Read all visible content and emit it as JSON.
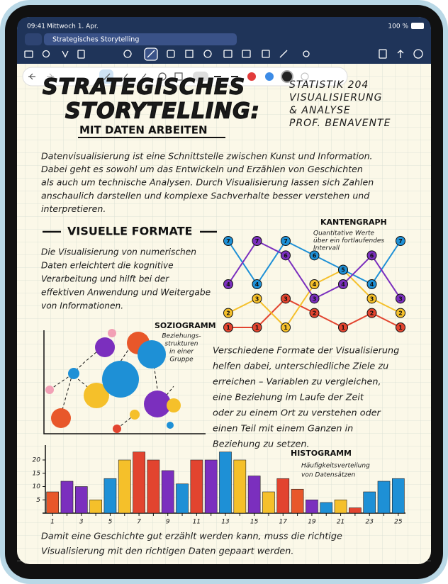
{
  "status_bar": {
    "time": "09:41",
    "date": "Mittwoch 1. Apr.",
    "battery": "100 %"
  },
  "tab": {
    "title": "Strategisches Storytelling"
  },
  "note": {
    "title": [
      "STRATEGISCHES",
      "STORYTELLING:"
    ],
    "subtitle": "MIT DATEN ARBEITEN",
    "course": [
      "STATISTIK 204",
      "VISUALISIERUNG",
      "& ANALYSE",
      "PROF. BENAVENTE"
    ],
    "intro": [
      "Datenvisualisierung ist eine Schnittstelle zwischen Kunst und Information.",
      "Dabei geht es sowohl um das Entwickeln und Erzählen von Geschichten",
      "als auch um technische Analysen. Durch Visualisierung lassen sich Zahlen",
      "anschaulich darstellen und komplexe Sachverhalte besser verstehen und",
      "interpretieren."
    ],
    "section": "VISUELLE FORMATE",
    "section_text": [
      "Die Visualisierung von numerischen",
      "Daten erleichtert die kognitive",
      "Verarbeitung und hilft bei der",
      "effektiven Anwendung und Weitergabe",
      "von Informationen."
    ],
    "edge_graph": {
      "title": "KANTENGRAPH",
      "note": [
        "Quantitative Werte",
        "über ein fortlaufendes",
        "Intervall"
      ]
    },
    "sociogram": {
      "title": "SOZIOGRAMM",
      "note": [
        "Beziehungs-",
        "strukturen",
        "in einer",
        "Gruppe"
      ]
    },
    "formats_text": [
      "Verschiedene Formate der Visualisierung",
      "helfen dabei, unterschiedliche Ziele zu",
      "erreichen – Variablen zu vergleichen,",
      "eine Beziehung im Laufe der Zeit",
      "oder zu einem Ort zu verstehen oder",
      "einen Teil mit einem Ganzen in",
      "Beziehung zu setzen."
    ],
    "histogram": {
      "title": "HISTOGRAMM",
      "note": [
        "Häufigkeitsverteilung",
        "von Datensätzen"
      ]
    },
    "closing": [
      "Damit eine Geschichte gut erzählt werden kann, muss die richtige",
      "Visualisierung mit den richtigen Daten gepaart werden."
    ]
  },
  "chart_data": [
    {
      "type": "line",
      "categories": [
        null,
        null,
        null,
        null,
        null,
        null,
        null
      ],
      "ylim": [
        1,
        7
      ],
      "series": [
        {
          "color": "#e2442f",
          "values": [
            1,
            1,
            3,
            2,
            1,
            2,
            1
          ]
        },
        {
          "color": "#f5c02a",
          "values": [
            2,
            3,
            1,
            4,
            5,
            3,
            2
          ]
        },
        {
          "color": "#1e90d6",
          "values": [
            7,
            4,
            7,
            6,
            5,
            4,
            7
          ]
        },
        {
          "color": "#7b2fbe",
          "values": [
            4,
            7,
            6,
            3,
            4,
            6,
            3
          ]
        }
      ]
    },
    {
      "type": "bar",
      "categories": [
        "1",
        null,
        "3",
        null,
        "5",
        null,
        "7",
        null,
        "9",
        null,
        "11",
        null,
        "13",
        null,
        "15",
        null,
        "17",
        null,
        "19",
        null,
        "21",
        null,
        "23",
        null,
        "25"
      ],
      "values": [
        8,
        12,
        10,
        5,
        13,
        20,
        23,
        20,
        16,
        11,
        20,
        20,
        23,
        20,
        14,
        8,
        13,
        9,
        5,
        4,
        5,
        2,
        8,
        12,
        13
      ],
      "colors": [
        "#e8572a",
        "#7b2fbe",
        "#7b2fbe",
        "#f5c02a",
        "#1e90d6",
        "#f5c02a",
        "#e2442f",
        "#e2442f",
        "#7b2fbe",
        "#1e90d6",
        "#e2442f",
        "#7b2fbe",
        "#1e90d6",
        "#f5c02a",
        "#7b2fbe",
        "#f5c02a",
        "#e2442f",
        "#e8572a",
        "#7b2fbe",
        "#1e90d6",
        "#f5c02a",
        "#e2442f",
        "#1e90d6",
        "#1e90d6",
        "#1e90d6"
      ],
      "ylim": [
        0,
        24
      ],
      "yticks": [
        5,
        10,
        15,
        20
      ]
    }
  ]
}
